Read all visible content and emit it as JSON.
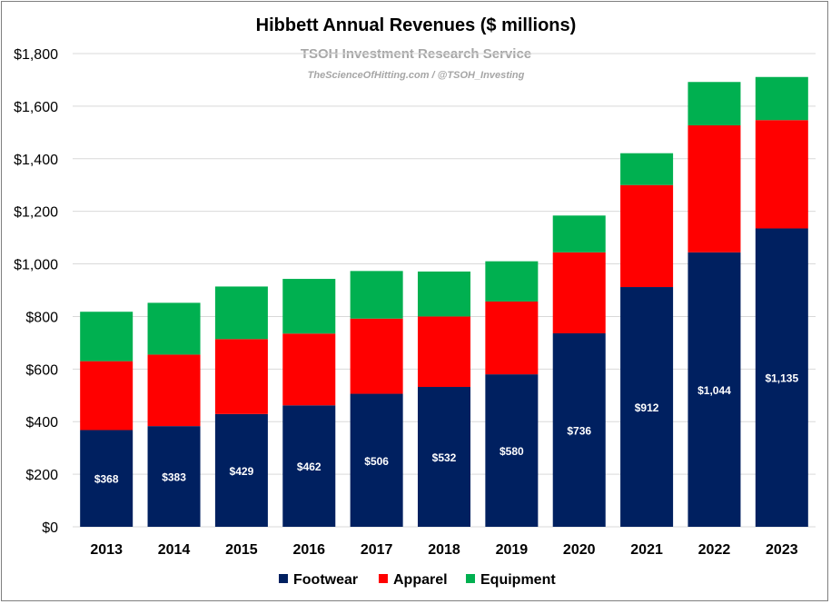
{
  "chart_data": {
    "type": "bar",
    "stacked": true,
    "title": "Hibbett Annual Revenues ($ millions)",
    "watermark": {
      "line1": "TSOH Investment Research Service",
      "line2": "TheScienceOfHitting.com / @TSOH_Investing"
    },
    "categories": [
      "2013",
      "2014",
      "2015",
      "2016",
      "2017",
      "2018",
      "2019",
      "2020",
      "2021",
      "2022",
      "2023"
    ],
    "series": [
      {
        "name": "Footwear",
        "color": "#002060",
        "values": [
          368,
          383,
          429,
          462,
          506,
          532,
          580,
          736,
          912,
          1044,
          1135
        ],
        "labels": [
          "$368",
          "$383",
          "$429",
          "$462",
          "$506",
          "$532",
          "$580",
          "$736",
          "$912",
          "$1,044",
          "$1,135"
        ]
      },
      {
        "name": "Apparel",
        "color": "#ff0000",
        "values": [
          262,
          272,
          285,
          273,
          286,
          268,
          277,
          308,
          388,
          483,
          412
        ]
      },
      {
        "name": "Equipment",
        "color": "#00b050",
        "values": [
          188,
          197,
          200,
          208,
          181,
          171,
          153,
          140,
          121,
          165,
          164
        ]
      }
    ],
    "ylim": [
      0,
      1800
    ],
    "yticks": [
      0,
      200,
      400,
      600,
      800,
      1000,
      1200,
      1400,
      1600,
      1800
    ],
    "ytick_labels": [
      "$0",
      "$200",
      "$400",
      "$600",
      "$800",
      "$1,000",
      "$1,200",
      "$1,400",
      "$1,600",
      "$1,800"
    ],
    "grid": true,
    "legend": "bottom"
  }
}
